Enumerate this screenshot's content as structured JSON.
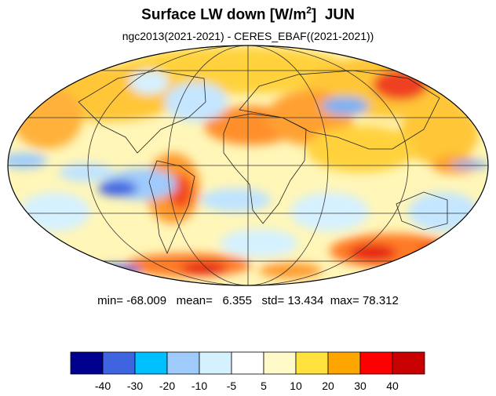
{
  "title": {
    "main": "Surface LW down [W/m",
    "sup": "2",
    "close": "]",
    "month": "JUN"
  },
  "subtitle": "ngc2013(2021-2021) - CERES_EBAF((2021-2021))",
  "stats": {
    "min_label": "min=",
    "min": "-68.009",
    "mean_label": "mean=",
    "mean": "6.355",
    "std_label": "std=",
    "std": "13.434",
    "max_label": "max=",
    "max": "78.312"
  },
  "colorbar": {
    "colors": [
      "#00008f",
      "#3f64e0",
      "#00bfff",
      "#9ecbfc",
      "#d5f1ff",
      "#ffffff",
      "#fffac8",
      "#ffe23d",
      "#ffa500",
      "#ff0000",
      "#c80000"
    ],
    "tick_labels": [
      "-40",
      "-30",
      "-20",
      "-10",
      "-5",
      "5",
      "10",
      "20",
      "30",
      "40"
    ]
  }
}
